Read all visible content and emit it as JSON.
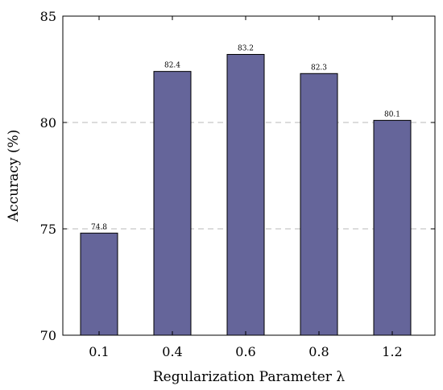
{
  "chart_data": {
    "type": "bar",
    "categories": [
      "0.1",
      "0.4",
      "0.6",
      "0.8",
      "1.2"
    ],
    "values": [
      74.8,
      82.4,
      83.2,
      82.3,
      80.1
    ],
    "data_labels": [
      "74.8",
      "82.4",
      "83.2",
      "82.3",
      "80.1"
    ],
    "title": "",
    "xlabel": "Regularization Parameter λ",
    "ylabel": "Accuracy (%)",
    "ylim": [
      70,
      85
    ],
    "yticks": [
      70,
      75,
      80,
      85
    ],
    "grid": "horizontal dashed at 75 and 80",
    "legend": "none",
    "bar_color": "#65659a",
    "bar_edge_color": "#000000"
  }
}
